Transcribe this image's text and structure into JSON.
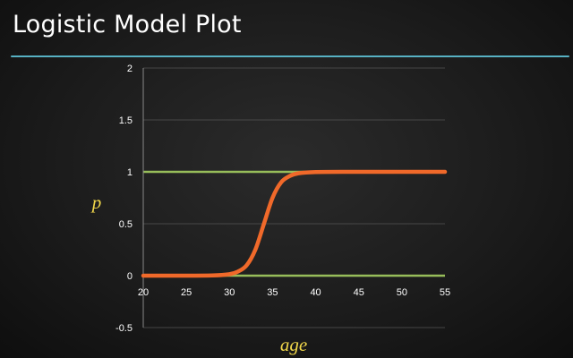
{
  "slide": {
    "title": "Logistic Model Plot"
  },
  "colors": {
    "background": "#1c1c1c",
    "title": "#ffffff",
    "rule": "#5bb9cc",
    "curve": "#f0692a",
    "reference_lines": "#97bd5a",
    "gridlines": "#555555",
    "axis_labels": "#f2d84a"
  },
  "chart_data": {
    "type": "line",
    "title": "",
    "xlabel": "age",
    "ylabel": "p",
    "xlim": [
      20,
      55
    ],
    "ylim": [
      -0.5,
      2
    ],
    "x_ticks": [
      "20",
      "25",
      "30",
      "35",
      "40",
      "45",
      "50",
      "55"
    ],
    "y_ticks": [
      "-0.5",
      "0",
      "0.5",
      "1",
      "1.5",
      "2"
    ],
    "grid": "horizontal",
    "legend": "none",
    "series": [
      {
        "values": [
          {
            "x": 20,
            "y": 0.0
          },
          {
            "x": 25,
            "y": 0.0
          },
          {
            "x": 28,
            "y": 0.002
          },
          {
            "x": 30,
            "y": 0.014
          },
          {
            "x": 31,
            "y": 0.04
          },
          {
            "x": 32,
            "y": 0.1
          },
          {
            "x": 33,
            "y": 0.25
          },
          {
            "x": 34,
            "y": 0.5
          },
          {
            "x": 35,
            "y": 0.75
          },
          {
            "x": 36,
            "y": 0.9
          },
          {
            "x": 37,
            "y": 0.96
          },
          {
            "x": 38,
            "y": 0.986
          },
          {
            "x": 40,
            "y": 0.998
          },
          {
            "x": 45,
            "y": 1.0
          },
          {
            "x": 50,
            "y": 1.0
          },
          {
            "x": 55,
            "y": 1.0
          }
        ]
      }
    ],
    "reference_lines": [
      {
        "y": 0
      },
      {
        "y": 1
      }
    ]
  }
}
